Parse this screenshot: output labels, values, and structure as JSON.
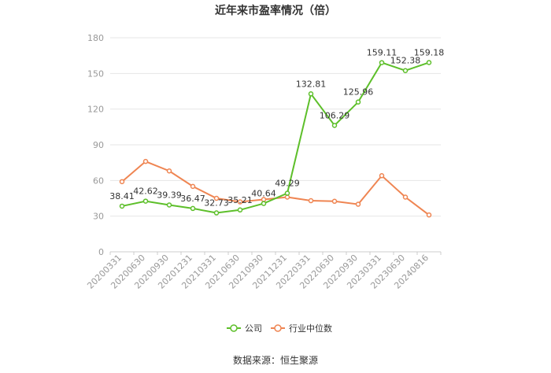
{
  "chart_data": {
    "type": "line",
    "title": "近年来市盈率情况（倍）",
    "categories": [
      "20200331",
      "20200630",
      "20200930",
      "20201231",
      "20210331",
      "20210630",
      "20210930",
      "20211231",
      "20220331",
      "20220630",
      "20220930",
      "20230331",
      "20230630",
      "20240816"
    ],
    "series": [
      {
        "name": "公司",
        "color": "#5dbf2a",
        "values": [
          38.41,
          42.62,
          39.39,
          36.47,
          32.73,
          35.21,
          40.64,
          49.29,
          132.81,
          106.29,
          125.96,
          159.11,
          152.38,
          159.18
        ],
        "labels_shown": true
      },
      {
        "name": "行业中位数",
        "color": "#ef8552",
        "values": [
          59.0,
          76.0,
          68.0,
          55.0,
          45.0,
          42.0,
          44.0,
          46.0,
          43.0,
          42.5,
          40.0,
          64.0,
          46.0,
          31.0
        ],
        "labels_shown": false
      }
    ],
    "yticks": [
      0,
      30,
      60,
      90,
      120,
      150,
      180
    ],
    "ylim": [
      0,
      180
    ],
    "grid": true,
    "legend": "bottom-center",
    "source": "数据来源：恒生聚源"
  }
}
